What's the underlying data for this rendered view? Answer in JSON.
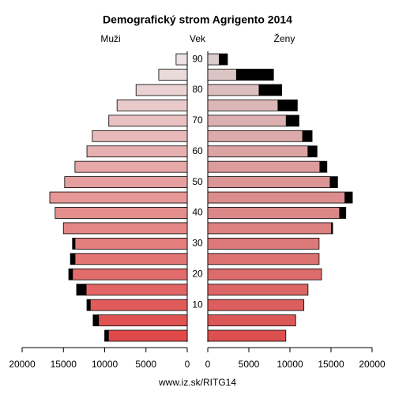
{
  "chart_data": {
    "type": "population-pyramid",
    "title": "Demografický strom Agrigento 2014",
    "y_label": "Vek",
    "footer": "www.iz.sk/RITG14",
    "categories": [
      null,
      null,
      "10",
      null,
      "20",
      null,
      "30",
      null,
      "40",
      null,
      "50",
      null,
      "60",
      null,
      "70",
      null,
      "80",
      null,
      "90"
    ],
    "series": [
      {
        "name": "Muži",
        "colors": [
          "#e04a4a",
          "#ebe3e3"
        ],
        "values": [
          10000,
          11400,
          12150,
          13400,
          14350,
          14150,
          13900,
          15000,
          16000,
          16650,
          14850,
          13600,
          12150,
          11500,
          9500,
          8500,
          6200,
          3450,
          1350
        ]
      },
      {
        "name": "Ženy",
        "colors": [
          "#dc5050",
          "#dccccc"
        ],
        "values": [
          9500,
          10700,
          11700,
          12200,
          13850,
          13550,
          13550,
          15200,
          16800,
          17600,
          15800,
          14500,
          13300,
          12700,
          11100,
          10900,
          9000,
          8000,
          2400
        ]
      }
    ],
    "excess_color": "#000000",
    "xlim": [
      0,
      20000
    ],
    "xticks": [
      0,
      5000,
      10000,
      15000,
      20000
    ]
  }
}
